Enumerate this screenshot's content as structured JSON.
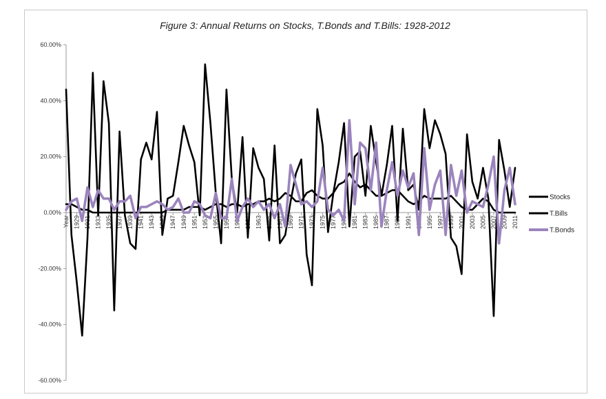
{
  "chart_data": {
    "type": "line",
    "title": "Figure 3: Annual Returns on Stocks, T.Bonds and T.Bills: 1928-2012",
    "xlabel": "",
    "ylabel": "",
    "ylim": [
      -60,
      60
    ],
    "y_ticks": [
      "60.00%",
      "40.00%",
      "20.00%",
      "0.00%",
      "-20.00%",
      "-40.00%",
      "-60.00%"
    ],
    "x_tick_labels": [
      "Year",
      "1929",
      "1931",
      "1933",
      "1935",
      "1937",
      "1939",
      "1941",
      "1943",
      "1945",
      "1947",
      "1949",
      "1951",
      "1953",
      "1955",
      "1957",
      "1959",
      "1961",
      "1963",
      "1965",
      "1967",
      "1969",
      "1971",
      "1973",
      "1975",
      "1977",
      "1979",
      "1981",
      "1983",
      "1985",
      "1987",
      "1989",
      "1991",
      "1993",
      "1995",
      "1997",
      "1999",
      "2001",
      "2003",
      "2005",
      "2007",
      "2009",
      "2011"
    ],
    "x": [
      1928,
      1929,
      1930,
      1931,
      1932,
      1933,
      1934,
      1935,
      1936,
      1937,
      1938,
      1939,
      1940,
      1941,
      1942,
      1943,
      1944,
      1945,
      1946,
      1947,
      1948,
      1949,
      1950,
      1951,
      1952,
      1953,
      1954,
      1955,
      1956,
      1957,
      1958,
      1959,
      1960,
      1961,
      1962,
      1963,
      1964,
      1965,
      1966,
      1967,
      1968,
      1969,
      1970,
      1971,
      1972,
      1973,
      1974,
      1975,
      1976,
      1977,
      1978,
      1979,
      1980,
      1981,
      1982,
      1983,
      1984,
      1985,
      1986,
      1987,
      1988,
      1989,
      1990,
      1991,
      1992,
      1993,
      1994,
      1995,
      1996,
      1997,
      1998,
      1999,
      2000,
      2001,
      2002,
      2003,
      2004,
      2005,
      2006,
      2007,
      2008,
      2009,
      2010,
      2011,
      2012
    ],
    "grid": false,
    "legend_position": "right",
    "series": [
      {
        "name": "Stocks",
        "color": "#000000",
        "values": [
          44,
          -8,
          -25,
          -44,
          -9,
          50,
          -1,
          47,
          32,
          -35,
          29,
          -1,
          -11,
          -13,
          19,
          25,
          19,
          36,
          -8,
          5,
          6,
          18,
          31,
          24,
          18,
          -1,
          53,
          32,
          7,
          -11,
          44,
          12,
          0,
          27,
          -9,
          23,
          16,
          12,
          -10,
          24,
          -11,
          -8,
          4,
          14,
          19,
          -15,
          -26,
          37,
          24,
          -7,
          7,
          18,
          32,
          -5,
          20,
          22,
          6,
          31,
          18,
          6,
          17,
          31,
          -3,
          30,
          8,
          10,
          1,
          37,
          23,
          33,
          28,
          21,
          -9,
          -12,
          -22,
          28,
          11,
          5,
          16,
          5,
          -37,
          26,
          15,
          2,
          16
        ]
      },
      {
        "name": "T.Bills",
        "color": "#000000",
        "values": [
          3,
          3,
          2,
          1,
          1,
          0,
          0,
          0,
          0,
          0,
          0,
          0,
          0,
          0,
          0,
          0,
          0,
          0,
          0,
          1,
          1,
          1,
          1,
          2,
          2,
          2,
          1,
          2,
          3,
          3,
          2,
          3,
          3,
          2,
          3,
          3,
          4,
          4,
          5,
          4,
          5,
          7,
          6,
          4,
          4,
          7,
          8,
          6,
          5,
          5,
          7,
          10,
          11,
          14,
          11,
          9,
          10,
          8,
          6,
          6,
          7,
          8,
          8,
          6,
          4,
          3,
          4,
          6,
          5,
          5,
          5,
          5,
          6,
          4,
          2,
          1,
          1,
          3,
          5,
          4,
          1,
          0,
          0,
          0,
          0
        ]
      },
      {
        "name": "T.Bonds",
        "color": "#9b84bd",
        "values": [
          1,
          4,
          5,
          -3,
          9,
          2,
          8,
          5,
          5,
          1,
          4,
          4,
          6,
          -2,
          2,
          2,
          3,
          4,
          3,
          1,
          2,
          5,
          0,
          0,
          4,
          3,
          -1,
          -2,
          7,
          -2,
          -2,
          12,
          -3,
          2,
          5,
          2,
          4,
          1,
          3,
          -2,
          3,
          -5,
          17,
          10,
          3,
          4,
          2,
          4,
          16,
          1,
          -1,
          1,
          -3,
          33,
          3,
          25,
          23,
          8,
          25,
          -5,
          8,
          18,
          6,
          15,
          9,
          14,
          -8,
          23,
          1,
          10,
          15,
          -8,
          17,
          6,
          15,
          0,
          4,
          3,
          2,
          10,
          20,
          -11,
          8,
          16,
          3
        ]
      }
    ]
  }
}
